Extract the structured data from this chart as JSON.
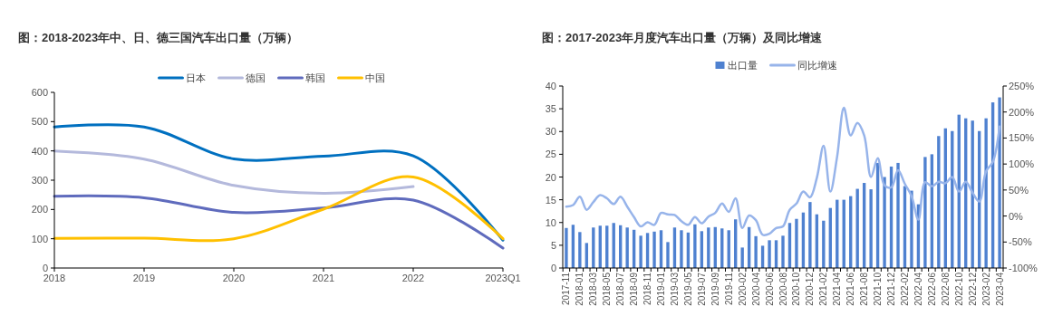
{
  "chart_data": [
    {
      "type": "line",
      "title": "图：2018-2023年中、日、德三国汽车出口量（万辆）",
      "categories": [
        "2018",
        "2019",
        "2020",
        "2021",
        "2022",
        "2023Q1"
      ],
      "ylim": [
        0,
        600
      ],
      "yticks": [
        0,
        100,
        200,
        300,
        400,
        500,
        600
      ],
      "legend": "top",
      "series": [
        {
          "name": "日本",
          "color": "#0070c0",
          "values": [
            482,
            482,
            373,
            382,
            383,
            95
          ]
        },
        {
          "name": "德国",
          "color": "#b4b9dc",
          "values": [
            400,
            372,
            282,
            255,
            278,
            null
          ]
        },
        {
          "name": "韩国",
          "color": "#5f6bbd",
          "values": [
            245,
            240,
            190,
            205,
            232,
            68
          ]
        },
        {
          "name": "中国",
          "color": "#ffc000",
          "values": [
            101,
            102,
            100,
            201,
            311,
            100
          ]
        }
      ]
    },
    {
      "type": "bar",
      "title": "图：2017-2023年月度汽车出口量（万辆）及同比增速",
      "categories": [
        "2017-11",
        null,
        "2018-01",
        null,
        "2018-03",
        null,
        "2018-05",
        null,
        "2018-07",
        null,
        "2018-09",
        null,
        "2018-11",
        null,
        "2019-01",
        null,
        "2019-03",
        null,
        "2019-05",
        null,
        "2019-07",
        null,
        "2019-09",
        null,
        "2019-11",
        null,
        "2020-02",
        null,
        "2020-04",
        null,
        "2020-06",
        null,
        "2020-08",
        null,
        "2020-10",
        null,
        "2020-12",
        null,
        "2021-02",
        null,
        "2021-04",
        null,
        "2021-06",
        null,
        "2021-08",
        null,
        "2021-10",
        null,
        "2021-12",
        null,
        "2022-02",
        null,
        "2022-04",
        null,
        "2022-06",
        null,
        "2022-08",
        null,
        "2022-10",
        null,
        "2022-12",
        null,
        "2023-02",
        null,
        "2023-04"
      ],
      "ylim": [
        0,
        40
      ],
      "yticks": [
        0,
        5,
        10,
        15,
        20,
        25,
        30,
        35,
        40
      ],
      "y2lim": [
        -100,
        250
      ],
      "y2ticks": [
        {
          "value": -100,
          "label": "-100%"
        },
        {
          "value": -50,
          "label": "-50%"
        },
        {
          "value": 0,
          "label": "0%"
        },
        {
          "value": 50,
          "label": "50%"
        },
        {
          "value": 100,
          "label": "100%"
        },
        {
          "value": 150,
          "label": "150%"
        },
        {
          "value": 200,
          "label": "200%"
        },
        {
          "value": 250,
          "label": "250%"
        }
      ],
      "legend": "top",
      "series": [
        {
          "name": "出口量",
          "color": "#4f81d0",
          "values": [
            8.8,
            9.5,
            7.9,
            5.5,
            8.9,
            9.3,
            9.3,
            9.9,
            9.4,
            8.9,
            8.4,
            7.1,
            7.7,
            8.0,
            8.3,
            5.7,
            8.9,
            8.3,
            7.8,
            9.6,
            8.1,
            8.9,
            9.0,
            8.7,
            8.3,
            10.7,
            4.5,
            9.0,
            7.0,
            4.9,
            6.1,
            6.1,
            7.1,
            9.9,
            10.8,
            12.2,
            14.5,
            11.8,
            10.4,
            13.2,
            15.0,
            15.0,
            15.8,
            17.4,
            18.7,
            17.3,
            23.1,
            20.0,
            22.3,
            23.1,
            18.0,
            17.0,
            14.0,
            24.4,
            25.0,
            29.0,
            30.7,
            30.1,
            33.7,
            32.9,
            32.4,
            30.1,
            32.9,
            36.4,
            37.5
          ]
        },
        {
          "name": "同比增速",
          "type": "line",
          "axis": "y2",
          "color": "#97b4ea",
          "values": [
            18,
            21,
            37,
            12,
            27,
            40,
            34,
            23,
            37,
            18,
            -2,
            -20,
            -12,
            -17,
            6,
            3,
            2,
            -10,
            -17,
            -2,
            -14,
            -1,
            6,
            24,
            8,
            34,
            -23,
            1,
            -8,
            -36,
            -34,
            -23,
            -20,
            12,
            24,
            47,
            36,
            73,
            135,
            47,
            114,
            208,
            155,
            179,
            155,
            75,
            111,
            59,
            55,
            88,
            62,
            38,
            -7,
            65,
            57,
            66,
            63,
            75,
            47,
            66,
            45,
            28,
            86,
            104,
            172
          ]
        }
      ]
    }
  ]
}
